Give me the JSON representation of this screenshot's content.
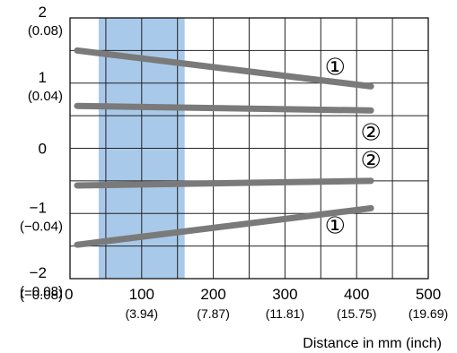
{
  "chart_data": {
    "type": "line",
    "xlabel": "Distance in mm (inch)",
    "xlim": [
      0,
      500
    ],
    "ylim": [
      -2,
      2
    ],
    "grid": true,
    "x_ticks": [
      {
        "value": 0,
        "label": "0",
        "sub": ""
      },
      {
        "value": 100,
        "label": "100",
        "sub": "(3.94)"
      },
      {
        "value": 200,
        "label": "200",
        "sub": "(7.87)"
      },
      {
        "value": 300,
        "label": "300",
        "sub": "(11.81)"
      },
      {
        "value": 400,
        "label": "400",
        "sub": "(15.75)"
      },
      {
        "value": 500,
        "label": "500",
        "sub": "(19.69)"
      }
    ],
    "y_ticks": [
      {
        "value": 2,
        "label": "2",
        "sub": "(0.08)"
      },
      {
        "value": 1,
        "label": "1",
        "sub": "(0.04)"
      },
      {
        "value": 0,
        "label": "0",
        "sub": ""
      },
      {
        "value": -1,
        "label": "−1",
        "sub": "(−0.04)"
      },
      {
        "value": -2,
        "label": "−2",
        "sub": "(−0.08)"
      }
    ],
    "highlight_band": {
      "x_from": 40,
      "x_to": 160,
      "color": "#a9c9ea"
    },
    "series_color": "#7a7a7a",
    "series": [
      {
        "label": "①",
        "x": [
          10,
          420
        ],
        "y": [
          1.5,
          0.95
        ],
        "label_at": [
          370,
          1.25
        ]
      },
      {
        "label": "②",
        "x": [
          10,
          420
        ],
        "y": [
          0.65,
          0.58
        ],
        "label_at": [
          420,
          0.25
        ]
      },
      {
        "label": "②",
        "x": [
          10,
          420
        ],
        "y": [
          -0.57,
          -0.5
        ],
        "label_at": [
          420,
          -0.18
        ]
      },
      {
        "label": "①",
        "x": [
          10,
          420
        ],
        "y": [
          -1.48,
          -0.92
        ],
        "label_at": [
          370,
          -1.18
        ]
      }
    ]
  }
}
